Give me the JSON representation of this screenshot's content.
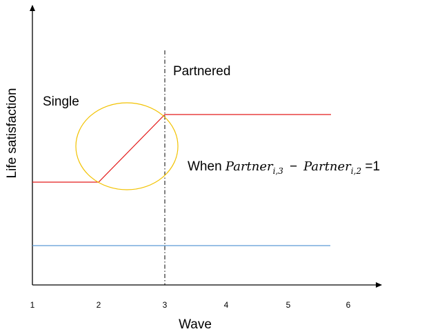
{
  "axes": {
    "xlabel": "Wave",
    "ylabel": "Life satisfaction",
    "xticks": [
      "1",
      "2",
      "3",
      "4",
      "5",
      "6"
    ]
  },
  "labels": {
    "single": "Single",
    "partnered": "Partnered"
  },
  "equation": {
    "prefix": "When ",
    "term1_base": "Partner",
    "term1_sub": "i,3",
    "minus": "−",
    "term2_base": "Partner",
    "term2_sub": "i,2",
    "suffix": " =1"
  },
  "colors": {
    "partnered_line": "#e31a1a",
    "single_line": "#5b9bd5",
    "highlight_circle": "#f2c200",
    "axis": "#000000",
    "text": "#000000"
  }
}
